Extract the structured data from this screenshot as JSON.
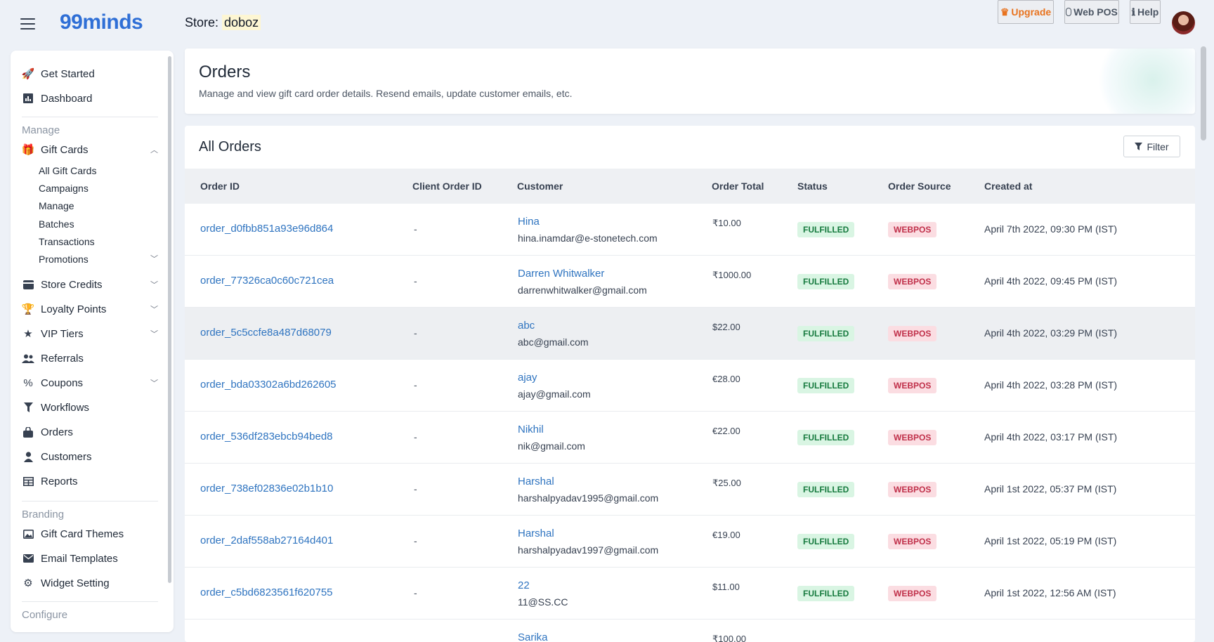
{
  "brand": {
    "logo": "99minds"
  },
  "store": {
    "label": "Store:",
    "name": "doboz"
  },
  "top_actions": {
    "upgrade": "Upgrade",
    "web_pos": "Web POS",
    "help": "Help"
  },
  "sidebar": {
    "items": [
      {
        "label": "Get Started",
        "icon": "rocket-icon"
      },
      {
        "label": "Dashboard",
        "icon": "chart-icon"
      }
    ],
    "manage_label": "Manage",
    "gift_cards": {
      "label": "Gift Cards",
      "sub": [
        "All Gift Cards",
        "Campaigns",
        "Manage",
        "Batches",
        "Transactions",
        "Promotions"
      ]
    },
    "manage_items": [
      {
        "label": "Store Credits",
        "icon": "wallet-icon"
      },
      {
        "label": "Loyalty Points",
        "icon": "trophy-icon"
      },
      {
        "label": "VIP Tiers",
        "icon": "star-icon"
      },
      {
        "label": "Referrals",
        "icon": "users-icon"
      },
      {
        "label": "Coupons",
        "icon": "percent-icon"
      },
      {
        "label": "Workflows",
        "icon": "funnel-icon"
      },
      {
        "label": "Orders",
        "icon": "bag-icon"
      },
      {
        "label": "Customers",
        "icon": "user-icon"
      },
      {
        "label": "Reports",
        "icon": "table-icon"
      }
    ],
    "branding_label": "Branding",
    "branding_items": [
      {
        "label": "Gift Card Themes",
        "icon": "image-icon"
      },
      {
        "label": "Email Templates",
        "icon": "mail-icon"
      },
      {
        "label": "Widget Setting",
        "icon": "gear-icon"
      }
    ],
    "configure_label": "Configure"
  },
  "page": {
    "title": "Orders",
    "subtitle": "Manage and view gift card order details. Resend emails, update customer emails, etc."
  },
  "orders": {
    "title": "All Orders",
    "filter_label": "Filter",
    "columns": [
      "Order ID",
      "Client Order ID",
      "Customer",
      "Order Total",
      "Status",
      "Order Source",
      "Created at"
    ],
    "rows": [
      {
        "id": "order_d0fbb851a93e96d864",
        "client": "-",
        "name": "Hina",
        "email": "hina.inamdar@e-stonetech.com",
        "total": "₹10.00",
        "status": "FULFILLED",
        "source": "WEBPOS",
        "created": "April 7th 2022, 09:30 PM (IST)"
      },
      {
        "id": "order_77326ca0c60c721cea",
        "client": "-",
        "name": "Darren Whitwalker",
        "email": "darrenwhitwalker@gmail.com",
        "total": "₹1000.00",
        "status": "FULFILLED",
        "source": "WEBPOS",
        "created": "April 4th 2022, 09:45 PM (IST)"
      },
      {
        "id": "order_5c5ccfe8a487d68079",
        "client": "-",
        "name": "abc",
        "email": "abc@gmail.com",
        "total": "$22.00",
        "status": "FULFILLED",
        "source": "WEBPOS",
        "created": "April 4th 2022, 03:29 PM (IST)"
      },
      {
        "id": "order_bda03302a6bd262605",
        "client": "-",
        "name": "ajay",
        "email": "ajay@gmail.com",
        "total": "€28.00",
        "status": "FULFILLED",
        "source": "WEBPOS",
        "created": "April 4th 2022, 03:28 PM (IST)"
      },
      {
        "id": "order_536df283ebcb94bed8",
        "client": "-",
        "name": "Nikhil",
        "email": "nik@gmail.com",
        "total": "€22.00",
        "status": "FULFILLED",
        "source": "WEBPOS",
        "created": "April 4th 2022, 03:17 PM (IST)"
      },
      {
        "id": "order_738ef02836e02b1b10",
        "client": "-",
        "name": "Harshal",
        "email": "harshalpyadav1995@gmail.com",
        "total": "₹25.00",
        "status": "FULFILLED",
        "source": "WEBPOS",
        "created": "April 1st 2022, 05:37 PM (IST)"
      },
      {
        "id": "order_2daf558ab27164d401",
        "client": "-",
        "name": "Harshal",
        "email": "harshalpyadav1997@gmail.com",
        "total": "€19.00",
        "status": "FULFILLED",
        "source": "WEBPOS",
        "created": "April 1st 2022, 05:19 PM (IST)"
      },
      {
        "id": "order_c5bd6823561f620755",
        "client": "-",
        "name": "22",
        "email": "11@SS.CC",
        "total": "$11.00",
        "status": "FULFILLED",
        "source": "WEBPOS",
        "created": "April 1st 2022, 12:56 AM (IST)"
      },
      {
        "id": "",
        "client": "",
        "name": "Sarika",
        "email": "",
        "total": "₹100.00",
        "status": "",
        "source": "",
        "created": ""
      }
    ]
  }
}
